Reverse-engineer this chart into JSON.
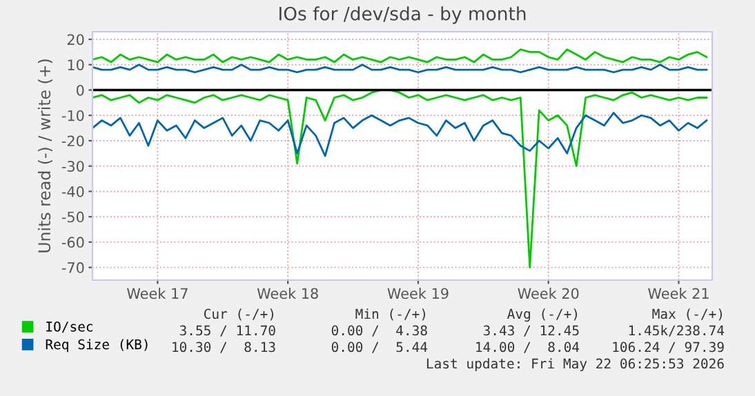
{
  "chart_data": {
    "type": "line",
    "title": "IOs for /dev/sda - by month",
    "ylabel": "Units read (-) / write (+)",
    "categories": [
      null,
      null,
      null,
      null,
      null,
      null,
      null,
      "Week 17",
      null,
      null,
      null,
      null,
      null,
      null,
      null,
      null,
      null,
      null,
      null,
      null,
      null,
      "Week 18",
      null,
      null,
      null,
      null,
      null,
      null,
      null,
      null,
      null,
      null,
      null,
      null,
      null,
      "Week 19",
      null,
      null,
      null,
      null,
      null,
      null,
      null,
      null,
      null,
      null,
      null,
      null,
      null,
      "Week 20",
      null,
      null,
      null,
      null,
      null,
      null,
      null,
      null,
      null,
      null,
      null,
      null,
      null,
      "Week 21",
      null,
      null,
      null
    ],
    "ylim": [
      -75,
      23
    ],
    "yticks": [
      -70,
      -60,
      -50,
      -40,
      -30,
      -20,
      -10,
      0,
      10,
      20
    ],
    "grid": true,
    "legend": "bottom left",
    "ref_lines": [
      {
        "axis": "y",
        "value": 0,
        "color": "#000000"
      }
    ],
    "series": [
      {
        "name": "IO/sec",
        "color": "#00cc00",
        "values": [
          12,
          13,
          11,
          14,
          12,
          13,
          12,
          11,
          14,
          12,
          13,
          12,
          12,
          14,
          11,
          13,
          12,
          13,
          12,
          11,
          14,
          12,
          13,
          12,
          12,
          13,
          11,
          14,
          12,
          13,
          12,
          11,
          13,
          12,
          13,
          12,
          11,
          13,
          12,
          12,
          13,
          11,
          14,
          12,
          12,
          13,
          16,
          15,
          15,
          13,
          12,
          16,
          14,
          12,
          15,
          13,
          12,
          11,
          13,
          12,
          12,
          11,
          13,
          12,
          14,
          15,
          13
        ]
      },
      {
        "color": "#00cc00",
        "values": [
          -3,
          -2,
          -4,
          -3,
          -2,
          -5,
          -3,
          -4,
          -2,
          -3,
          -4,
          -5,
          -3,
          -2,
          -4,
          -3,
          -2,
          -3,
          -4,
          -2,
          -3,
          -4,
          -29,
          -3,
          -4,
          -12,
          -3,
          -2,
          -4,
          -3,
          -1,
          0,
          0,
          -1,
          -3,
          -2,
          -4,
          -3,
          -2,
          -3,
          -4,
          -3,
          -2,
          -4,
          -3,
          -4,
          -3,
          -70,
          -8,
          -12,
          -10,
          -14,
          -30,
          -3,
          -2,
          -3,
          -4,
          -2,
          -1,
          -3,
          -2,
          -3,
          -4,
          -3,
          -4,
          -3,
          -3
        ]
      },
      {
        "name": "Req Size (KB)",
        "color": "#0066b3",
        "values": [
          9,
          8,
          8,
          9,
          8,
          10,
          8,
          8,
          9,
          8,
          8,
          7,
          8,
          9,
          8,
          8,
          10,
          8,
          8,
          9,
          8,
          8,
          7,
          8,
          8,
          9,
          8,
          8,
          8,
          10,
          8,
          8,
          9,
          8,
          8,
          7,
          8,
          8,
          9,
          8,
          8,
          8,
          8,
          9,
          8,
          8,
          7,
          8,
          9,
          8,
          8,
          8,
          9,
          8,
          8,
          8,
          7,
          8,
          8,
          9,
          8,
          10,
          8,
          8,
          9,
          8,
          8
        ]
      },
      {
        "color": "#0066b3",
        "values": [
          -15,
          -12,
          -14,
          -11,
          -18,
          -13,
          -22,
          -12,
          -16,
          -14,
          -19,
          -12,
          -15,
          -13,
          -11,
          -18,
          -14,
          -20,
          -12,
          -13,
          -16,
          -12,
          -25,
          -14,
          -18,
          -26,
          -13,
          -11,
          -15,
          -12,
          -10,
          -12,
          -14,
          -12,
          -11,
          -13,
          -14,
          -18,
          -12,
          -15,
          -13,
          -20,
          -14,
          -12,
          -17,
          -18,
          -22,
          -24,
          -20,
          -23,
          -19,
          -25,
          -15,
          -10,
          -12,
          -14,
          -9,
          -13,
          -12,
          -10,
          -11,
          -14,
          -12,
          -16,
          -13,
          -15,
          -12
        ]
      }
    ],
    "annotations": [
      "Cur (-/+)",
      "Min (-/+)",
      "Avg (-/+)",
      "Max (-/+)",
      "3.55 / 11.70",
      "0.00 /  4.38",
      "3.43 / 12.45",
      "1.45k/238.74",
      "10.30 /  8.13",
      "0.00 /  5.44",
      "14.00 /  8.04",
      "106.24 / 97.39",
      "Last update: Fri May 22 06:25:53 2026"
    ]
  }
}
